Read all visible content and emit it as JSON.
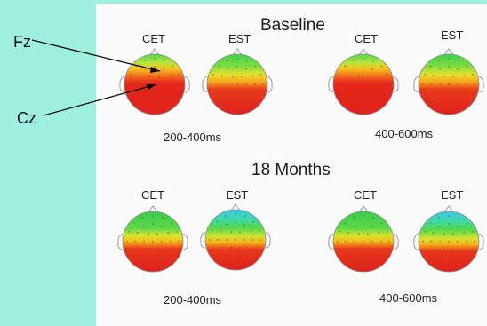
{
  "panels": [
    {
      "title": "Baseline",
      "groups": [
        {
          "window": "200-400ms",
          "heads": [
            {
              "condition": "CET",
              "map": "mostly-red-green-top"
            },
            {
              "condition": "EST",
              "map": "red-lower-yellow-green-top"
            }
          ]
        },
        {
          "window": "400-600ms",
          "heads": [
            {
              "condition": "CET",
              "map": "mostly-red-green-top"
            },
            {
              "condition": "EST",
              "map": "red-lower-yellow-green-top"
            }
          ]
        }
      ]
    },
    {
      "title": "18 Months",
      "groups": [
        {
          "window": "200-400ms",
          "heads": [
            {
              "condition": "CET",
              "map": "green-top-red-lower"
            },
            {
              "condition": "EST",
              "map": "cyan-green-top-red-lower"
            }
          ]
        },
        {
          "window": "400-600ms",
          "heads": [
            {
              "condition": "CET",
              "map": "green-top-red-lower"
            },
            {
              "condition": "EST",
              "map": "cyan-green-top-red-lower"
            }
          ]
        }
      ]
    }
  ],
  "annotations": {
    "fz_label": "Fz",
    "cz_label": "Cz"
  },
  "colors": {
    "background": "#9ff0de",
    "panel": "#fbfbfb",
    "hot": "#e8231a",
    "warm": "#f7d21c",
    "cool": "#54d64b",
    "cold": "#35c9e8"
  }
}
